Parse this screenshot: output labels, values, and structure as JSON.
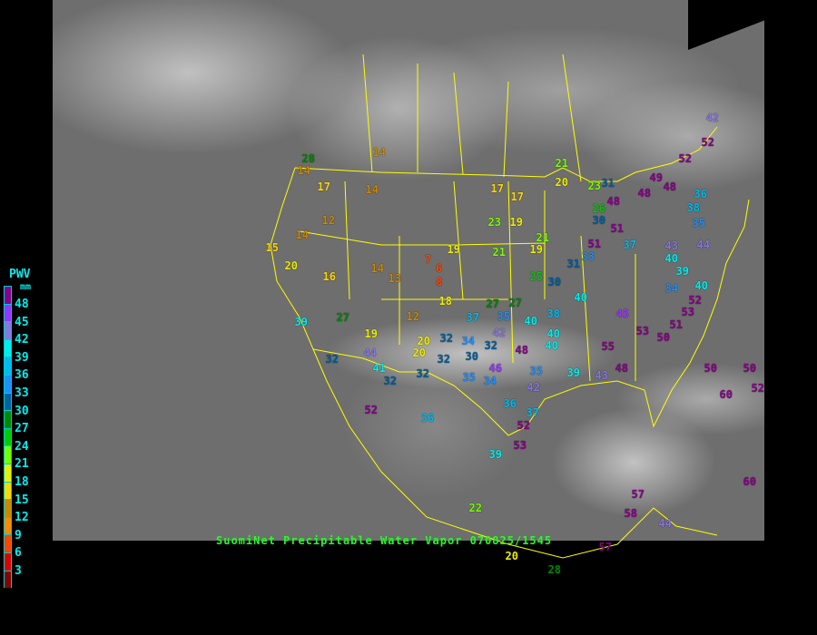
{
  "title": "SuomiNet Precipitable Water Vapor 070825/1545",
  "legend": {
    "title": "PWV",
    "unit": "mm",
    "labels": [
      "48",
      "45",
      "42",
      "39",
      "36",
      "33",
      "30",
      "27",
      "24",
      "21",
      "18",
      "15",
      "12",
      "9",
      "6",
      "3"
    ],
    "colors": [
      "#8b008b",
      "#9933ff",
      "#8877dd",
      "#00eeee",
      "#00bbee",
      "#1e90ff",
      "#005f9f",
      "#008800",
      "#00cc00",
      "#77ff00",
      "#eeee00",
      "#ffd700",
      "#cc8800",
      "#ff8800",
      "#ff4400",
      "#dd0000",
      "#880000"
    ]
  },
  "border_color": "#ffff00",
  "stations": [
    "28",
    "14",
    "14",
    "17",
    "14",
    "12",
    "14",
    "15",
    "20",
    "16",
    "14",
    "13",
    "7",
    "6",
    "8",
    "18",
    "19",
    "17",
    "17",
    "23",
    "19",
    "21",
    "19",
    "21",
    "21",
    "20",
    "23",
    "26",
    "30",
    "25",
    "30",
    "31",
    "33",
    "51",
    "37",
    "40",
    "39",
    "40",
    "34",
    "52",
    "43",
    "44",
    "27",
    "27",
    "37",
    "35",
    "38",
    "40",
    "40",
    "20",
    "20",
    "32",
    "34",
    "32",
    "42",
    "48",
    "40",
    "40",
    "30",
    "32",
    "32",
    "32",
    "41",
    "44",
    "32",
    "27",
    "19",
    "12",
    "39",
    "35",
    "34",
    "46",
    "35",
    "42",
    "36",
    "37",
    "52",
    "53",
    "39",
    "52",
    "36",
    "22",
    "39",
    "43",
    "48",
    "53",
    "50",
    "51",
    "53",
    "55",
    "45",
    "57",
    "58",
    "44",
    "50",
    "60",
    "50",
    "52",
    "60",
    "57",
    "20",
    "28",
    "48",
    "48",
    "49",
    "48",
    "52",
    "52",
    "42",
    "38",
    "36",
    "35",
    "51",
    "31"
  ]
}
